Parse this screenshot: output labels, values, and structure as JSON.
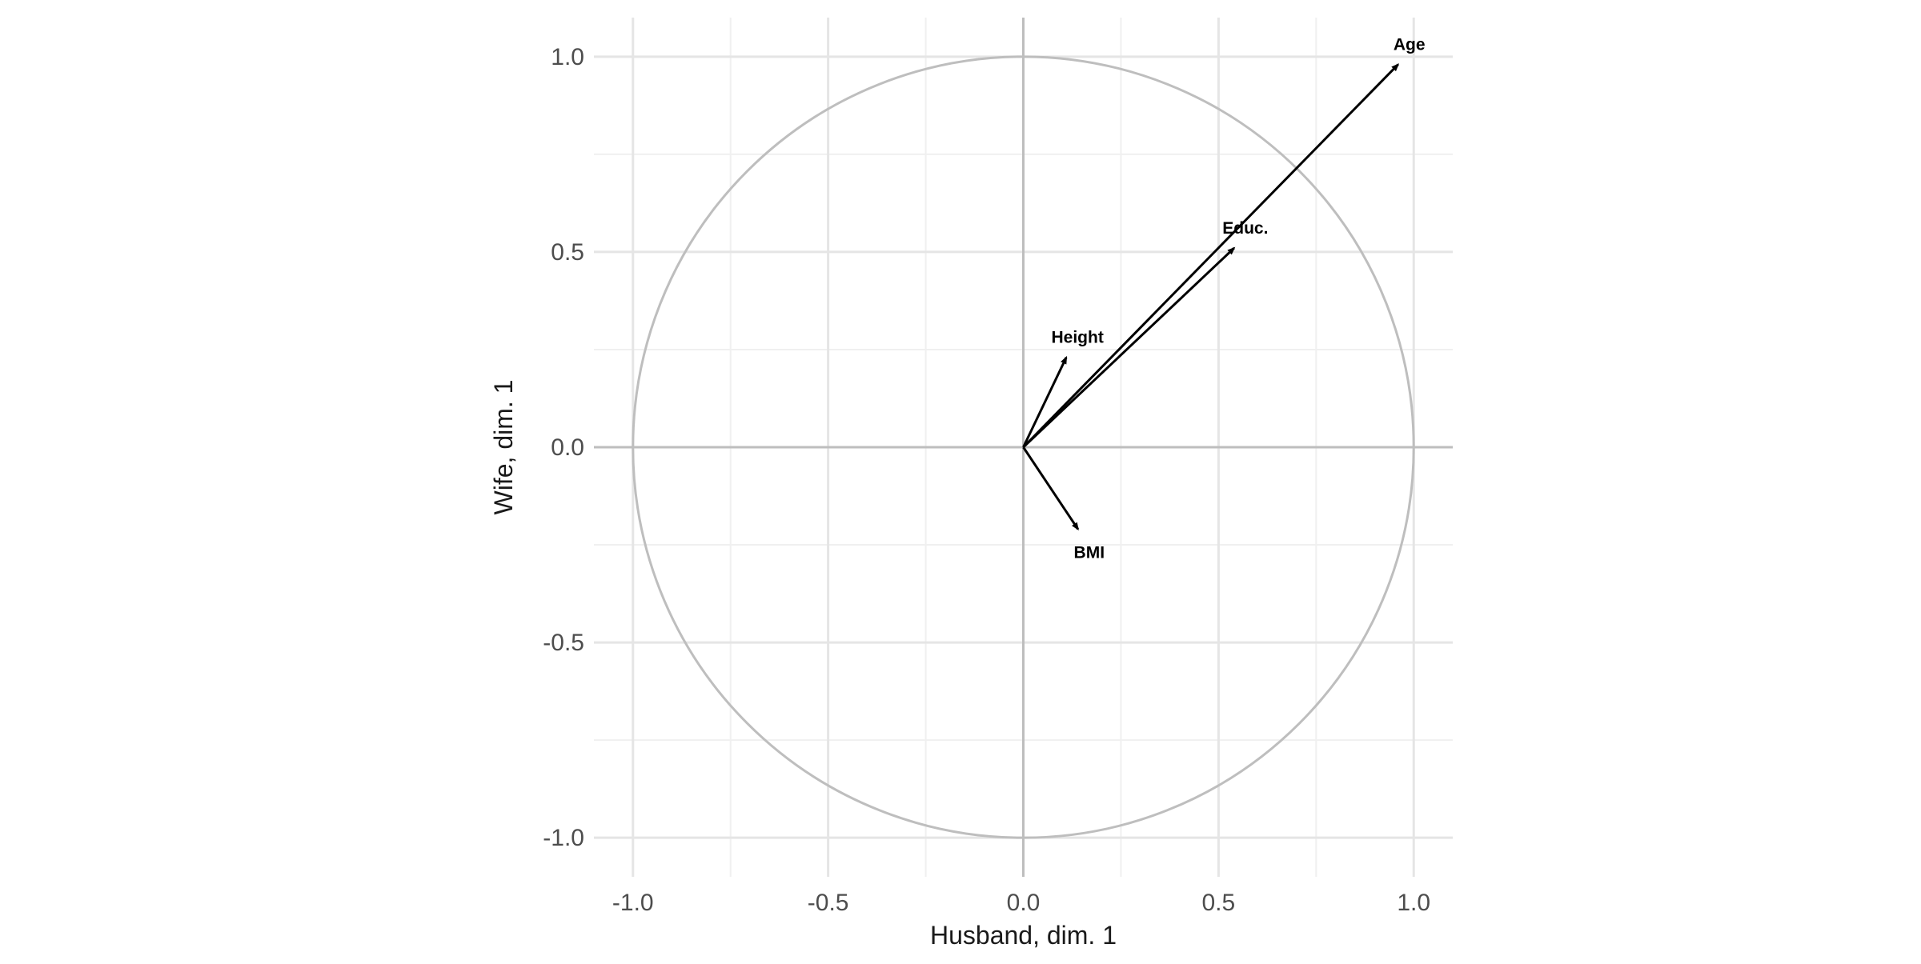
{
  "chart_data": {
    "type": "scatter",
    "subtype": "correlation-circle-biplot",
    "title": "",
    "xlabel": "Husband, dim. 1",
    "ylabel": "Wife, dim. 1",
    "xlim": [
      -1.1,
      1.1
    ],
    "ylim": [
      -1.1,
      1.1
    ],
    "x_ticks": [
      -1.0,
      -0.5,
      0.0,
      0.5,
      1.0
    ],
    "y_ticks": [
      -1.0,
      -0.5,
      0.0,
      0.5,
      1.0
    ],
    "x_tick_labels": [
      "-1.0",
      "-0.5",
      "0.0",
      "0.5",
      "1.0"
    ],
    "y_tick_labels": [
      "-1.0",
      "-0.5",
      "0.0",
      "0.5",
      "1.0"
    ],
    "grid": true,
    "legend": "none",
    "unit_circle_radius": 1.0,
    "vectors": [
      {
        "label": "Age",
        "x": 0.96,
        "y": 0.98
      },
      {
        "label": "Educ.",
        "x": 0.54,
        "y": 0.51
      },
      {
        "label": "Height",
        "x": 0.11,
        "y": 0.23
      },
      {
        "label": "BMI",
        "x": 0.14,
        "y": -0.21
      }
    ],
    "colors": {
      "vector": "#000000",
      "circle": "#bebebe",
      "zero_line": "#bebebe",
      "grid_major": "#e5e5e5",
      "grid_minor": "#f0f0f0"
    }
  }
}
